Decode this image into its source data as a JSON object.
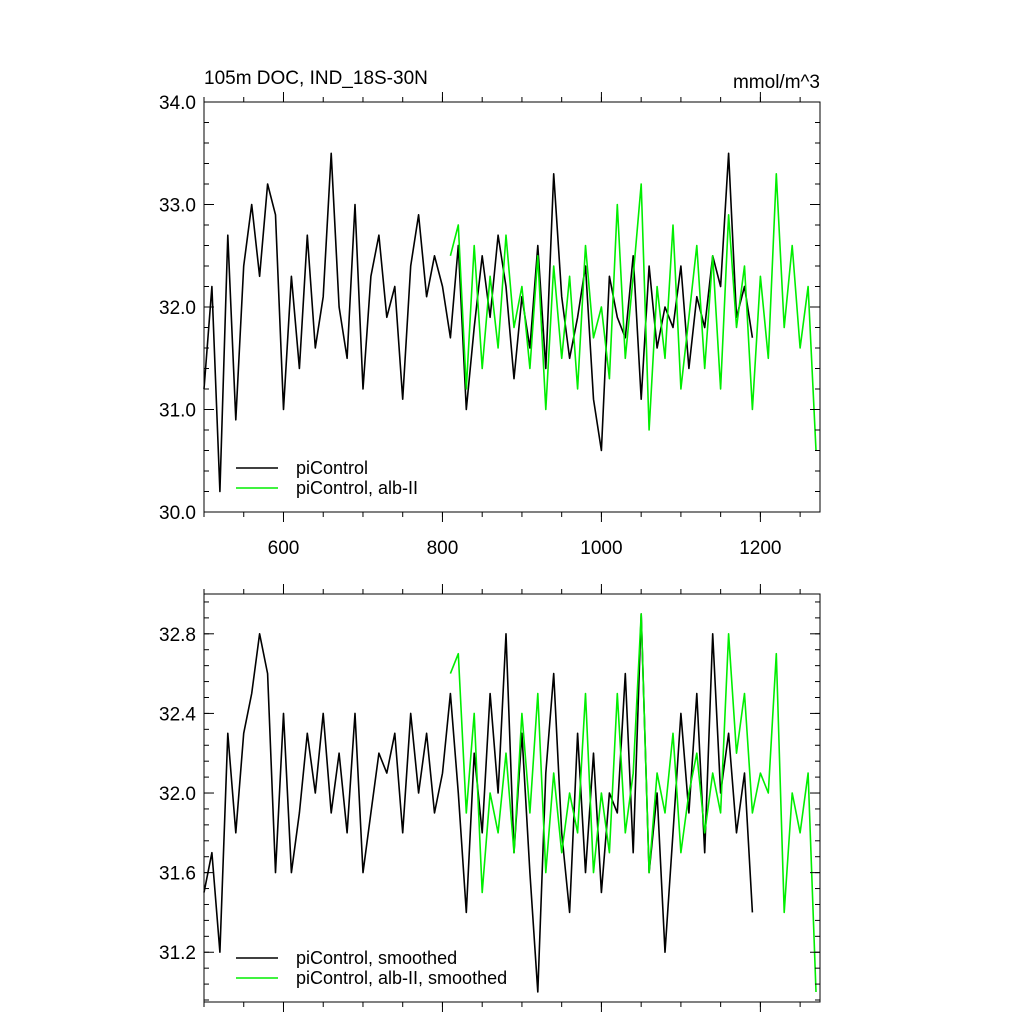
{
  "colors": {
    "control": "#000000",
    "alb": "#00ee00"
  },
  "chart_data": [
    {
      "type": "line",
      "title": "105m DOC, IND_18S-30N",
      "units": "mmol/m^3",
      "xlim": [
        500,
        1275
      ],
      "ylim": [
        30.0,
        34.0
      ],
      "xticks": [
        600,
        800,
        1000,
        1200
      ],
      "xtick_labels": [
        "600",
        "800",
        "1000",
        "1200"
      ],
      "yticks": [
        30.0,
        31.0,
        32.0,
        33.0,
        34.0
      ],
      "ytick_labels": [
        "30.0",
        "31.0",
        "32.0",
        "33.0",
        "34.0"
      ],
      "legend_position": "bottom-left",
      "series": [
        {
          "name": "piControl",
          "color": "#000000",
          "x": [
            500,
            510,
            520,
            530,
            540,
            550,
            560,
            570,
            580,
            590,
            600,
            610,
            620,
            630,
            640,
            650,
            660,
            670,
            680,
            690,
            700,
            710,
            720,
            730,
            740,
            750,
            760,
            770,
            780,
            790,
            800,
            810,
            820,
            830,
            840,
            850,
            860,
            870,
            880,
            890,
            900,
            910,
            920,
            930,
            940,
            950,
            960,
            970,
            980,
            990,
            1000,
            1010,
            1020,
            1030,
            1040,
            1050,
            1060,
            1070,
            1080,
            1090,
            1100,
            1110,
            1120,
            1130,
            1140,
            1150,
            1160,
            1170,
            1180,
            1190
          ],
          "y": [
            31.2,
            32.2,
            30.2,
            32.7,
            30.9,
            32.4,
            33.0,
            32.3,
            33.2,
            32.9,
            31.0,
            32.3,
            31.4,
            32.7,
            31.6,
            32.1,
            33.5,
            32.0,
            31.5,
            33.0,
            31.2,
            32.3,
            32.7,
            31.9,
            32.2,
            31.1,
            32.4,
            32.9,
            32.1,
            32.5,
            32.2,
            31.7,
            32.6,
            31.0,
            31.8,
            32.5,
            31.9,
            32.7,
            32.2,
            31.3,
            32.1,
            31.6,
            32.6,
            31.4,
            33.3,
            32.1,
            31.5,
            31.9,
            32.4,
            31.1,
            30.6,
            32.3,
            31.9,
            31.7,
            32.5,
            31.1,
            32.4,
            31.6,
            32.0,
            31.8,
            32.4,
            31.4,
            32.1,
            31.8,
            32.5,
            32.2,
            33.5,
            31.9,
            32.2,
            31.7
          ]
        },
        {
          "name": "piControl, alb-II",
          "color": "#00ee00",
          "x": [
            810,
            820,
            830,
            840,
            850,
            860,
            870,
            880,
            890,
            900,
            910,
            920,
            930,
            940,
            950,
            960,
            970,
            980,
            990,
            1000,
            1010,
            1020,
            1030,
            1040,
            1050,
            1060,
            1070,
            1080,
            1090,
            1100,
            1110,
            1120,
            1130,
            1140,
            1150,
            1160,
            1170,
            1180,
            1190,
            1200,
            1210,
            1220,
            1230,
            1240,
            1250,
            1260,
            1270
          ],
          "y": [
            32.5,
            32.8,
            31.2,
            32.6,
            31.4,
            32.3,
            31.6,
            32.7,
            31.8,
            32.2,
            31.4,
            32.5,
            31.0,
            32.4,
            31.5,
            32.3,
            31.2,
            32.6,
            31.7,
            32.0,
            31.3,
            33.0,
            31.5,
            32.3,
            33.2,
            30.8,
            32.2,
            31.5,
            32.8,
            31.2,
            31.9,
            32.6,
            31.4,
            32.5,
            31.2,
            32.9,
            31.8,
            32.4,
            31.0,
            32.3,
            31.5,
            33.3,
            31.8,
            32.6,
            31.6,
            32.2,
            30.6
          ]
        }
      ]
    },
    {
      "type": "line",
      "xlim": [
        500,
        1275
      ],
      "ylim": [
        30.95,
        33.0
      ],
      "xticks": [
        600,
        800,
        1000,
        1200
      ],
      "yticks": [
        31.2,
        31.6,
        32.0,
        32.4,
        32.8
      ],
      "ytick_labels": [
        "31.2",
        "31.6",
        "32.0",
        "32.4",
        "32.8"
      ],
      "legend_position": "bottom-left",
      "series": [
        {
          "name": "piControl, smoothed",
          "color": "#000000",
          "x": [
            500,
            510,
            520,
            530,
            540,
            550,
            560,
            570,
            580,
            590,
            600,
            610,
            620,
            630,
            640,
            650,
            660,
            670,
            680,
            690,
            700,
            710,
            720,
            730,
            740,
            750,
            760,
            770,
            780,
            790,
            800,
            810,
            820,
            830,
            840,
            850,
            860,
            870,
            880,
            890,
            900,
            910,
            920,
            930,
            940,
            950,
            960,
            970,
            980,
            990,
            1000,
            1010,
            1020,
            1030,
            1040,
            1050,
            1060,
            1070,
            1080,
            1090,
            1100,
            1110,
            1120,
            1130,
            1140,
            1150,
            1160,
            1170,
            1180,
            1190
          ],
          "y": [
            31.5,
            31.7,
            31.2,
            32.3,
            31.8,
            32.3,
            32.5,
            32.8,
            32.6,
            31.6,
            32.4,
            31.6,
            31.9,
            32.3,
            32.0,
            32.4,
            31.9,
            32.2,
            31.8,
            32.4,
            31.6,
            31.9,
            32.2,
            32.1,
            32.3,
            31.8,
            32.4,
            32.0,
            32.3,
            31.9,
            32.1,
            32.5,
            32.0,
            31.4,
            32.2,
            31.8,
            32.5,
            32.0,
            32.8,
            31.7,
            32.3,
            31.6,
            31.0,
            32.1,
            32.6,
            31.8,
            31.4,
            32.3,
            31.6,
            32.2,
            31.5,
            32.0,
            31.9,
            32.6,
            31.7,
            32.9,
            31.6,
            32.0,
            31.2,
            31.8,
            32.4,
            31.9,
            32.5,
            31.7,
            32.8,
            32.0,
            32.3,
            31.8,
            32.1,
            31.4
          ]
        },
        {
          "name": "piControl, alb-II, smoothed",
          "color": "#00ee00",
          "x": [
            810,
            820,
            830,
            840,
            850,
            860,
            870,
            880,
            890,
            900,
            910,
            920,
            930,
            940,
            950,
            960,
            970,
            980,
            990,
            1000,
            1010,
            1020,
            1030,
            1040,
            1050,
            1060,
            1070,
            1080,
            1090,
            1100,
            1110,
            1120,
            1130,
            1140,
            1150,
            1160,
            1170,
            1180,
            1190,
            1200,
            1210,
            1220,
            1230,
            1240,
            1250,
            1260,
            1270
          ],
          "y": [
            32.6,
            32.7,
            31.9,
            32.4,
            31.5,
            32.0,
            31.8,
            32.2,
            31.7,
            32.4,
            31.9,
            32.5,
            31.6,
            32.1,
            31.7,
            32.0,
            31.8,
            32.5,
            31.6,
            32.0,
            31.7,
            32.5,
            31.8,
            32.1,
            32.9,
            31.6,
            32.1,
            31.9,
            32.3,
            31.7,
            32.0,
            32.2,
            31.8,
            32.1,
            31.9,
            32.8,
            32.2,
            32.5,
            31.9,
            32.1,
            32.0,
            32.7,
            31.4,
            32.0,
            31.8,
            32.1,
            31.0
          ]
        }
      ]
    }
  ]
}
